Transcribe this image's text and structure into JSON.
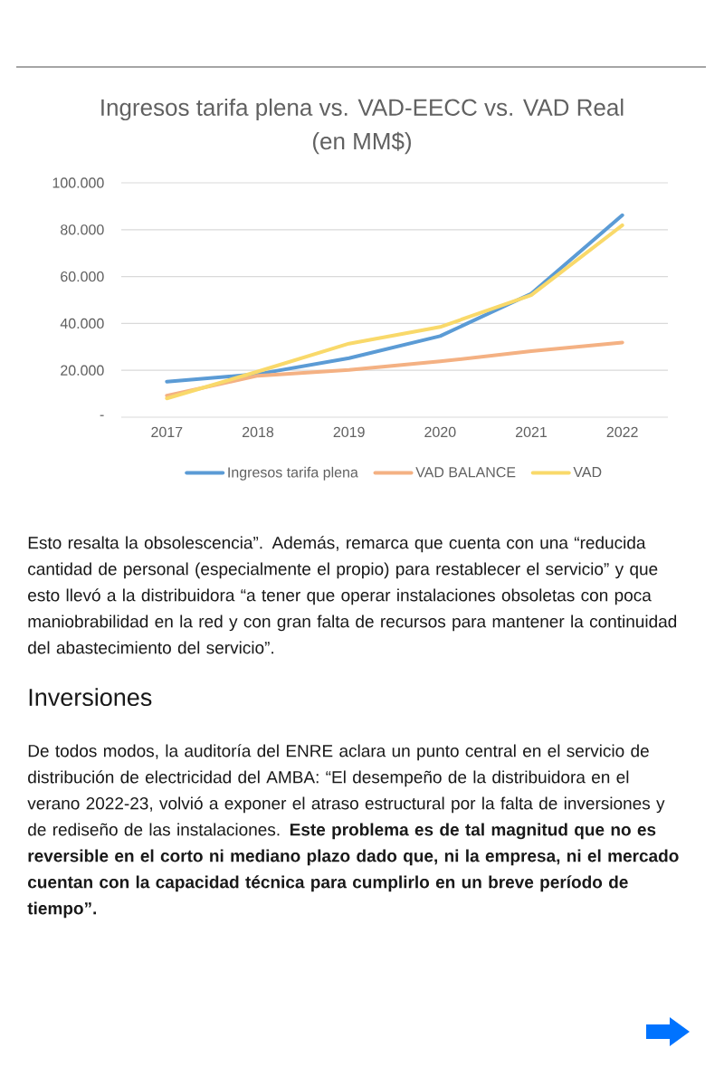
{
  "chart_data": {
    "type": "line",
    "title": "Ingresos tarifa plena vs. VAD-EECC vs. VAD Real",
    "subtitle": "(en MM$)",
    "categories": [
      "2017",
      "2018",
      "2019",
      "2020",
      "2021",
      "2022"
    ],
    "series": [
      {
        "name": "Ingresos tarifa plena",
        "color": "#5b9bd5",
        "values": [
          15200,
          18400,
          25200,
          34600,
          52700,
          86200
        ]
      },
      {
        "name": "VAD BALANCE",
        "color": "#f4b183",
        "values": [
          9200,
          17700,
          20200,
          23800,
          28200,
          31900
        ]
      },
      {
        "name": "VAD",
        "color": "#f9d96a",
        "values": [
          8000,
          19500,
          31400,
          38500,
          52100,
          81900
        ]
      }
    ],
    "ylim": [
      0,
      100000
    ],
    "yticks": [
      {
        "value": 0,
        "label": "-"
      },
      {
        "value": 20000,
        "label": "20.000"
      },
      {
        "value": 40000,
        "label": "40.000"
      },
      {
        "value": 60000,
        "label": "60.000"
      },
      {
        "value": 80000,
        "label": "80.000"
      },
      {
        "value": 100000,
        "label": "100.000"
      }
    ],
    "grid": "y",
    "legend": "bottom",
    "marker": "none",
    "line_style": "solid",
    "annotations": [
      "Esto resalta la obsolescencia”. Además, remarca que cuenta con una “reducida cantidad de personal (especialmente el propio) para restablecer el servicio” y que esto llevó a la distribuidora “a tener que operar instalaciones obsoletas con poca maniobrabilidad en la red y con gran falta de recursos para mantener la continuidad del abastecimiento del servicio”.",
      "Inversiones",
      "De todos modos, la auditoría del ENRE aclara un punto central en el servicio de distribución de electricidad del AMBA: “El desempeño de la distribuidora en el verano 2022-23, volvió a exponer el atraso estructural por la falta de inversiones y de rediseño de las instalaciones. **Este problema es de tal magnitud que no es reversible en el corto ni mediano plazo dado que, ni la empresa, ni el mercado cuentan con la capacidad técnica para cumplirlo en un breve período de tiempo”.**"
    ]
  }
}
